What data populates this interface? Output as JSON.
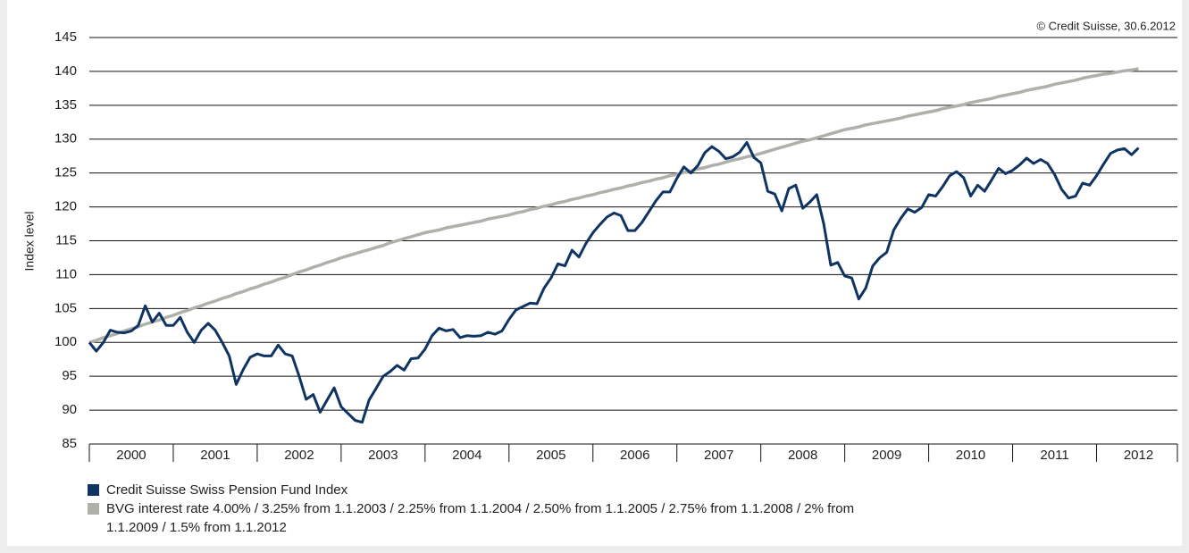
{
  "chart_data": {
    "type": "line",
    "source": "© Credit Suisse, 30.6.2012",
    "y_label": "Index level",
    "categories": [
      null,
      null,
      null,
      null,
      null,
      null,
      "2000",
      null,
      null,
      null,
      null,
      null,
      null,
      null,
      null,
      null,
      null,
      null,
      "2001",
      null,
      null,
      null,
      null,
      null,
      null,
      null,
      null,
      null,
      null,
      null,
      "2002",
      null,
      null,
      null,
      null,
      null,
      null,
      null,
      null,
      null,
      null,
      null,
      "2003",
      null,
      null,
      null,
      null,
      null,
      null,
      null,
      null,
      null,
      null,
      null,
      "2004",
      null,
      null,
      null,
      null,
      null,
      null,
      null,
      null,
      null,
      null,
      null,
      "2005",
      null,
      null,
      null,
      null,
      null,
      null,
      null,
      null,
      null,
      null,
      null,
      "2006",
      null,
      null,
      null,
      null,
      null,
      null,
      null,
      null,
      null,
      null,
      null,
      "2007",
      null,
      null,
      null,
      null,
      null,
      null,
      null,
      null,
      null,
      null,
      null,
      "2008",
      null,
      null,
      null,
      null,
      null,
      null,
      null,
      null,
      null,
      null,
      null,
      "2009",
      null,
      null,
      null,
      null,
      null,
      null,
      null,
      null,
      null,
      null,
      null,
      "2010",
      null,
      null,
      null,
      null,
      null,
      null,
      null,
      null,
      null,
      null,
      null,
      "2011",
      null,
      null,
      null,
      null,
      null,
      null,
      null,
      null,
      null,
      null,
      null,
      "2012"
    ],
    "series": [
      {
        "name": "Credit Suisse Swiss Pension Fund Index",
        "color": "#0f3463",
        "values": [
          100,
          98.7,
          100,
          101.8,
          101.5,
          101.4,
          101.7,
          102.5,
          105.4,
          103,
          104.3,
          102.5,
          102.5,
          103.7,
          101.5,
          100,
          101.8,
          102.8,
          101.8,
          100,
          98,
          93.8,
          96,
          97.8,
          98.3,
          98,
          98,
          99.6,
          98.3,
          98,
          95,
          91.6,
          92.3,
          89.7,
          91.5,
          93.3,
          90.5,
          89.5,
          88.5,
          88.2,
          91.5,
          93.2,
          95,
          95.7,
          96.6,
          95.9,
          97.6,
          97.7,
          99,
          101,
          102.1,
          101.7,
          101.9,
          100.7,
          101,
          100.9,
          101,
          101.5,
          101.2,
          101.7,
          103.4,
          104.8,
          105.3,
          105.8,
          105.7,
          108,
          109.5,
          111.6,
          111.3,
          113.6,
          112.6,
          114.6,
          116.2,
          117.4,
          118.5,
          119.1,
          118.7,
          116.5,
          116.5,
          117.7,
          119.3,
          120.9,
          122.2,
          122.2,
          124.2,
          125.9,
          125,
          126.1,
          128,
          128.9,
          128.2,
          127.1,
          127.4,
          128.1,
          129.5,
          127.3,
          126.5,
          122.3,
          121.9,
          119.4,
          122.7,
          123.2,
          119.8,
          120.7,
          121.8,
          117.5,
          111.4,
          111.8,
          109.8,
          109.5,
          106.4,
          108,
          111.3,
          112.5,
          113.3,
          116.6,
          118.3,
          119.7,
          119.2,
          119.9,
          121.8,
          121.6,
          123,
          124.6,
          125.2,
          124.3,
          121.6,
          123.2,
          122.3,
          124,
          125.7,
          124.9,
          125.4,
          126.2,
          127.2,
          126.4,
          127,
          126.4,
          124.8,
          122.6,
          121.3,
          121.6,
          123.5,
          123.2,
          124.6,
          126.3,
          127.9,
          128.4,
          128.6,
          127.7,
          128.7
        ]
      },
      {
        "name": "BVG interest rate 4.00% / 3.25% from 1.1.2003 / 2.25% from 1.1.2004 / 2.50% from 1.1.2005 / 2.75% from 1.1.2008 / 2% from 1.1.2009 / 1.5% from 1.1.2012",
        "color": "#b0b0ab",
        "values": [
          100,
          100.3,
          100.7,
          101,
          101.3,
          101.7,
          102,
          102.3,
          102.7,
          103,
          103.3,
          103.7,
          104,
          104.4,
          104.7,
          105.1,
          105.4,
          105.8,
          106.1,
          106.5,
          106.8,
          107.2,
          107.5,
          107.9,
          108.2,
          108.6,
          108.9,
          109.3,
          109.6,
          110,
          110.4,
          110.7,
          111.1,
          111.4,
          111.8,
          112.1,
          112.5,
          112.8,
          113.1,
          113.4,
          113.7,
          114,
          114.3,
          114.7,
          115,
          115.3,
          115.6,
          115.9,
          116.2,
          116.4,
          116.6,
          116.9,
          117.1,
          117.3,
          117.5,
          117.7,
          117.9,
          118.2,
          118.4,
          118.6,
          118.8,
          119.1,
          119.3,
          119.6,
          119.8,
          120.1,
          120.3,
          120.6,
          120.8,
          121.1,
          121.3,
          121.6,
          121.8,
          122.1,
          122.3,
          122.6,
          122.8,
          123.1,
          123.3,
          123.6,
          123.8,
          124.1,
          124.3,
          124.6,
          124.8,
          125.1,
          125.3,
          125.6,
          125.8,
          126.1,
          126.3,
          126.6,
          126.9,
          127.1,
          127.4,
          127.6,
          127.9,
          128.2,
          128.5,
          128.8,
          129.1,
          129.4,
          129.7,
          129.9,
          130.2,
          130.5,
          130.8,
          131.1,
          131.4,
          131.6,
          131.8,
          132.1,
          132.3,
          132.5,
          132.7,
          132.9,
          133.1,
          133.4,
          133.6,
          133.8,
          134,
          134.2,
          134.5,
          134.7,
          134.9,
          135.1,
          135.4,
          135.6,
          135.8,
          136,
          136.3,
          136.5,
          136.7,
          136.9,
          137.2,
          137.4,
          137.6,
          137.8,
          138.1,
          138.3,
          138.5,
          138.7,
          139,
          139.2,
          139.4,
          139.6,
          139.7,
          139.9,
          140.1,
          140.2,
          140.4
        ]
      }
    ],
    "ylim": [
      85,
      145
    ],
    "yticks": [
      85,
      90,
      95,
      100,
      105,
      110,
      115,
      120,
      125,
      130,
      135,
      140,
      145
    ],
    "grid": true
  }
}
